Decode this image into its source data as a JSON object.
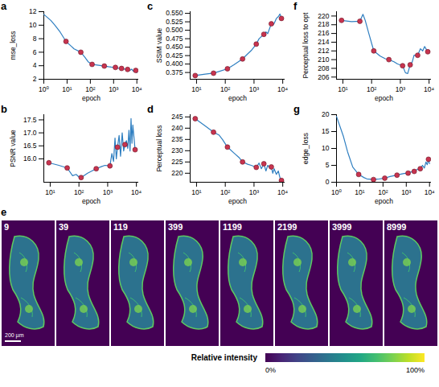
{
  "chart_data": [
    {
      "type": "line",
      "panel": "a",
      "x_label": "epoch",
      "y_label": "mse_loss",
      "log": "x",
      "color": "#2f7fc1",
      "x": [
        1,
        2,
        3,
        5,
        9,
        15,
        20,
        39,
        60,
        80,
        119,
        200,
        300,
        399,
        600,
        800,
        1199,
        1500,
        2199,
        3000,
        3999,
        5000,
        6000,
        7000,
        8999,
        10000
      ],
      "values": [
        11.6,
        10.7,
        10.0,
        9.0,
        7.6,
        6.9,
        6.5,
        6.0,
        5.2,
        4.6,
        4.2,
        4.1,
        4.0,
        3.95,
        3.85,
        3.8,
        3.75,
        3.65,
        3.6,
        3.5,
        3.45,
        3.3,
        3.5,
        3.2,
        3.3,
        3.0
      ],
      "points": {
        "x": [
          9,
          39,
          119,
          399,
          1199,
          2199,
          3999,
          8999
        ],
        "values": [
          7.6,
          6.0,
          4.2,
          3.95,
          3.75,
          3.6,
          3.45,
          3.3
        ],
        "color": "#c7344f"
      },
      "xlim": [
        1,
        12000
      ],
      "ylim": [
        2,
        12
      ],
      "xticks": [
        {
          "value": 1,
          "label": "10⁰"
        },
        {
          "value": 10,
          "label": "10¹"
        },
        {
          "value": 100,
          "label": "10²"
        },
        {
          "value": 1000,
          "label": "10³"
        },
        {
          "value": 10000,
          "label": "10⁴"
        }
      ],
      "yticks": [
        2,
        4,
        6,
        8,
        10,
        12
      ]
    },
    {
      "type": "line",
      "panel": "b",
      "x_label": "epoch",
      "y_label": "PSNR value",
      "log": "x",
      "color": "#2f7fc1",
      "x": [
        9,
        20,
        39,
        60,
        80,
        100,
        119,
        200,
        300,
        399,
        600,
        800,
        1199,
        1400,
        1600,
        1800,
        2000,
        2199,
        2500,
        2800,
        3200,
        3600,
        3999,
        4500,
        5000,
        5500,
        6000,
        6500,
        7000,
        7500,
        8999
      ],
      "values": [
        15.85,
        15.75,
        15.65,
        15.35,
        15.4,
        15.3,
        15.28,
        15.45,
        15.55,
        15.62,
        15.7,
        15.75,
        15.73,
        16.2,
        15.9,
        16.8,
        16.0,
        16.45,
        16.9,
        16.1,
        17.0,
        16.3,
        16.55,
        16.7,
        16.4,
        17.1,
        16.3,
        17.55,
        16.6,
        17.3,
        16.35
      ],
      "points": {
        "x": [
          9,
          39,
          119,
          399,
          1199,
          2199,
          3999,
          8999
        ],
        "values": [
          15.85,
          15.65,
          15.28,
          15.62,
          15.73,
          16.45,
          16.55,
          16.35
        ],
        "color": "#c7344f"
      },
      "xlim": [
        6,
        12000
      ],
      "ylim": [
        15.1,
        17.7
      ],
      "xticks": [
        {
          "value": 10,
          "label": "10¹"
        },
        {
          "value": 100,
          "label": "10²"
        },
        {
          "value": 1000,
          "label": "10³"
        },
        {
          "value": 10000,
          "label": "10⁴"
        }
      ],
      "yticks": [
        {
          "value": 16,
          "label": "16.0"
        },
        {
          "value": 16.5,
          "label": "16.5"
        },
        {
          "value": 17,
          "label": "17.0"
        },
        {
          "value": 17.5,
          "label": "17.5"
        }
      ]
    },
    {
      "type": "line",
      "panel": "c",
      "x_label": "epoch",
      "y_label": "SSIM value",
      "log": "x",
      "color": "#2f7fc1",
      "x": [
        9,
        20,
        39,
        60,
        119,
        200,
        399,
        600,
        800,
        1199,
        1500,
        2199,
        2600,
        3000,
        3999,
        4500,
        5000,
        6000,
        7000,
        8000,
        8999
      ],
      "values": [
        0.366,
        0.37,
        0.373,
        0.378,
        0.386,
        0.398,
        0.415,
        0.43,
        0.44,
        0.459,
        0.475,
        0.488,
        0.495,
        0.49,
        0.519,
        0.515,
        0.52,
        0.535,
        0.54,
        0.548,
        0.535
      ],
      "points": {
        "x": [
          9,
          39,
          119,
          399,
          1199,
          2199,
          3999,
          8999
        ],
        "values": [
          0.366,
          0.373,
          0.386,
          0.415,
          0.459,
          0.488,
          0.519,
          0.535
        ],
        "color": "#c7344f"
      },
      "xlim": [
        6,
        12000
      ],
      "ylim": [
        0.355,
        0.555
      ],
      "xticks": [
        {
          "value": 10,
          "label": "10¹"
        },
        {
          "value": 100,
          "label": "10²"
        },
        {
          "value": 1000,
          "label": "10³"
        },
        {
          "value": 10000,
          "label": "10⁴"
        }
      ],
      "yticks": [
        0.375,
        {
          "value": 0.4,
          "label": "0.400"
        },
        0.425,
        {
          "value": 0.45,
          "label": "0.450"
        },
        0.475,
        {
          "value": 0.5,
          "label": "0.500"
        },
        0.525,
        {
          "value": 0.55,
          "label": "0.550"
        }
      ]
    },
    {
      "type": "line",
      "panel": "d",
      "x_label": "epoch",
      "y_label": "Perceptual loss",
      "log": "x",
      "color": "#2f7fc1",
      "x": [
        9,
        20,
        39,
        60,
        80,
        119,
        200,
        300,
        399,
        600,
        800,
        1199,
        1500,
        1800,
        2199,
        2600,
        3000,
        3500,
        3999,
        4500,
        5000,
        6000,
        7000,
        8000,
        8999
      ],
      "values": [
        244.2,
        241,
        238.2,
        237,
        235,
        231.6,
        229,
        227,
        225,
        224,
        223.5,
        222.6,
        224.5,
        222,
        224.2,
        221,
        223.5,
        222.5,
        222.8,
        220,
        222,
        219.5,
        221,
        218,
        216.8
      ],
      "points": {
        "x": [
          9,
          39,
          119,
          399,
          1199,
          2199,
          3999,
          8999
        ],
        "values": [
          244.2,
          238.2,
          231.6,
          225,
          222.6,
          224.2,
          222.8,
          216.8
        ],
        "color": "#c7344f"
      },
      "xlim": [
        6,
        12000
      ],
      "ylim": [
        216,
        246
      ],
      "xticks": [
        {
          "value": 10,
          "label": "10¹"
        },
        {
          "value": 100,
          "label": "10²"
        },
        {
          "value": 1000,
          "label": "10³"
        },
        {
          "value": 10000,
          "label": "10⁴"
        }
      ],
      "yticks": [
        220,
        225,
        230,
        235,
        240,
        245
      ]
    },
    {
      "type": "line",
      "panel": "f",
      "x_label": "epoch",
      "y_label": "Perceptual loss to opt",
      "log": "x",
      "color": "#2f7fc1",
      "x": [
        9,
        20,
        39,
        50,
        60,
        80,
        119,
        200,
        300,
        399,
        600,
        800,
        1199,
        1500,
        1800,
        2199,
        2600,
        3000,
        3999,
        5000,
        6000,
        7000,
        8999
      ],
      "values": [
        219,
        218.7,
        218.8,
        220.4,
        219,
        216,
        212,
        210.8,
        210.2,
        210,
        209.5,
        209,
        208.6,
        207,
        206.8,
        208.8,
        209.5,
        211,
        211,
        212.5,
        212,
        213,
        211.8
      ],
      "points": {
        "x": [
          9,
          39,
          119,
          399,
          1199,
          2199,
          3999,
          8999
        ],
        "values": [
          219,
          218.8,
          212,
          210,
          208.6,
          208.8,
          211,
          211.8
        ],
        "color": "#c7344f"
      },
      "xlim": [
        6,
        12000
      ],
      "ylim": [
        205.5,
        221
      ],
      "xticks": [
        {
          "value": 10,
          "label": "10¹"
        },
        {
          "value": 100,
          "label": "10²"
        },
        {
          "value": 1000,
          "label": "10³"
        },
        {
          "value": 10000,
          "label": "10⁴"
        }
      ],
      "yticks": [
        206,
        208,
        210,
        212,
        214,
        216,
        218,
        220
      ]
    },
    {
      "type": "line",
      "panel": "g",
      "x_label": "epoch",
      "y_label": "edge_loss",
      "log": "x",
      "color": "#2f7fc1",
      "x": [
        1,
        2,
        3,
        5,
        9,
        15,
        20,
        39,
        60,
        119,
        200,
        399,
        600,
        800,
        1199,
        1500,
        2199,
        3000,
        3999,
        5000,
        6000,
        7000,
        8000,
        8999,
        10000
      ],
      "values": [
        19.5,
        13.5,
        9,
        4.5,
        2.3,
        1.4,
        1.0,
        0.8,
        0.9,
        1.2,
        1.7,
        2.1,
        2.4,
        2.6,
        2.7,
        3.0,
        3.2,
        3.8,
        4.0,
        5.0,
        4.2,
        6.0,
        5.2,
        6.8,
        5.5
      ],
      "points": {
        "x": [
          9,
          39,
          119,
          399,
          1199,
          2199,
          3999,
          8999
        ],
        "values": [
          2.3,
          0.8,
          1.2,
          2.1,
          2.7,
          3.2,
          4.0,
          6.8
        ],
        "color": "#c7344f"
      },
      "xlim": [
        1,
        12000
      ],
      "ylim": [
        0,
        20
      ],
      "xticks": [
        {
          "value": 1,
          "label": "10⁰"
        },
        {
          "value": 10,
          "label": "10¹"
        },
        {
          "value": 100,
          "label": "10²"
        },
        {
          "value": 1000,
          "label": "10³"
        },
        {
          "value": 10000,
          "label": "10⁴"
        }
      ],
      "yticks": [
        0,
        5,
        10,
        15,
        20
      ]
    },
    {
      "type": "image",
      "panel": "e",
      "epochs": [
        9,
        39,
        119,
        399,
        1199,
        2199,
        3999,
        8999
      ],
      "scale_bar": "200 µm",
      "colorbar": {
        "label": "Relative intensity",
        "range": [
          0,
          100
        ],
        "ticks": [
          {
            "value": 0,
            "label": "0%"
          },
          {
            "value": 100,
            "label": "100%"
          }
        ]
      }
    }
  ]
}
